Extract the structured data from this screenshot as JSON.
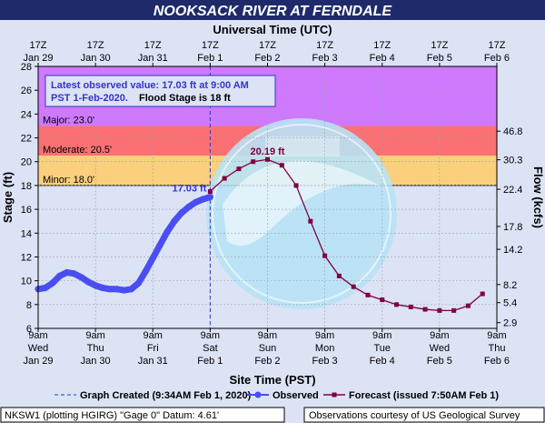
{
  "title": "NOOKSACK RIVER AT FERNDALE",
  "top_axis_title": "Universal Time (UTC)",
  "bottom_axis_title": "Site Time (PST)",
  "left_axis_title": "Stage (ft)",
  "right_axis_title": "Flow (kcfs)",
  "latest_box": {
    "line1": "Latest observed value: 17.03 ft at 9:00 AM",
    "line2a": "PST 1-Feb-2020.",
    "line2b": "Flood Stage is 18 ft"
  },
  "legend": {
    "graph_created": "Graph Created (9:34AM Feb 1, 2020)",
    "observed": "Observed",
    "forecast": "Forecast (issued 7:50AM Feb 1)"
  },
  "footer": {
    "left": "NKSW1 (plotting HGIRG) \"Gage 0\" Datum: 4.61'",
    "right": "Observations courtesy of US Geological Survey"
  },
  "colors": {
    "title_bg": "#1f2a6b",
    "major": "#cc66ff",
    "moderate": "#ff5c5c",
    "minor": "#ffcc66",
    "observed": "#4a4ef0",
    "forecast": "#800040",
    "latest_text": "#3333cc",
    "peak_text": "#800040",
    "frame_bg": "#dce3f5"
  },
  "chart_data": {
    "type": "line",
    "ylim": [
      6,
      28
    ],
    "y_ticks": [
      6,
      8,
      10,
      12,
      14,
      16,
      18,
      20,
      22,
      24,
      26,
      28
    ],
    "x_domain_hours": [
      0,
      192
    ],
    "bottom_ticks": [
      {
        "hour": 0,
        "line1": "9am",
        "line2": "Wed",
        "line3": "Jan 29"
      },
      {
        "hour": 24,
        "line1": "9am",
        "line2": "Thu",
        "line3": "Jan 30"
      },
      {
        "hour": 48,
        "line1": "9am",
        "line2": "Fri",
        "line3": "Jan 31"
      },
      {
        "hour": 72,
        "line1": "9am",
        "line2": "Sat",
        "line3": "Feb 1"
      },
      {
        "hour": 96,
        "line1": "9am",
        "line2": "Sun",
        "line3": "Feb 2"
      },
      {
        "hour": 120,
        "line1": "9am",
        "line2": "Mon",
        "line3": "Feb 3"
      },
      {
        "hour": 144,
        "line1": "9am",
        "line2": "Tue",
        "line3": "Feb 4"
      },
      {
        "hour": 168,
        "line1": "9am",
        "line2": "Wed",
        "line3": "Feb 5"
      },
      {
        "hour": 192,
        "line1": "9am",
        "line2": "Thu",
        "line3": "Feb 6"
      }
    ],
    "top_ticks": [
      {
        "hour": 0,
        "line1": "17Z",
        "line2": "Jan 29"
      },
      {
        "hour": 24,
        "line1": "17Z",
        "line2": "Jan 30"
      },
      {
        "hour": 48,
        "line1": "17Z",
        "line2": "Jan 31"
      },
      {
        "hour": 72,
        "line1": "17Z",
        "line2": "Feb 1"
      },
      {
        "hour": 96,
        "line1": "17Z",
        "line2": "Feb 2"
      },
      {
        "hour": 120,
        "line1": "17Z",
        "line2": "Feb 3"
      },
      {
        "hour": 144,
        "line1": "17Z",
        "line2": "Feb 4"
      },
      {
        "hour": 168,
        "line1": "17Z",
        "line2": "Feb 5"
      },
      {
        "hour": 192,
        "line1": "17Z",
        "line2": "Feb 6"
      }
    ],
    "flow_ticks": [
      {
        "stage": 6.48,
        "label": "2.9"
      },
      {
        "stage": 8.16,
        "label": "5.4"
      },
      {
        "stage": 9.68,
        "label": "8.2"
      },
      {
        "stage": 12.64,
        "label": "14.2"
      },
      {
        "stage": 14.56,
        "label": "17.8"
      },
      {
        "stage": 17.68,
        "label": "22.4"
      },
      {
        "stage": 20.16,
        "label": "30.3"
      },
      {
        "stage": 22.56,
        "label": "46.8"
      }
    ],
    "flood_categories": [
      {
        "name": "Major",
        "label": "Major: 23.0'",
        "from": 23.0,
        "to": 28
      },
      {
        "name": "Moderate",
        "label": "Moderate: 20.5'",
        "from": 20.5,
        "to": 23.0
      },
      {
        "name": "Minor",
        "label": "Minor: 18.0'",
        "from": 18.0,
        "to": 20.5
      }
    ],
    "latest_hour": 72,
    "latest_value_label": "17.03 ft",
    "peak_label": "20.19 ft",
    "peak_point": {
      "hour": 96,
      "y": 20.19
    },
    "series": [
      {
        "name": "Observed",
        "x": [
          0,
          3,
          6,
          9,
          12,
          15,
          18,
          21,
          24,
          27,
          30,
          33,
          36,
          39,
          42,
          45,
          48,
          51,
          54,
          57,
          60,
          63,
          66,
          69,
          72
        ],
        "y": [
          9.3,
          9.4,
          9.8,
          10.4,
          10.7,
          10.6,
          10.3,
          9.9,
          9.6,
          9.4,
          9.3,
          9.3,
          9.2,
          9.3,
          9.8,
          10.8,
          11.9,
          13.0,
          14.1,
          15.0,
          15.7,
          16.2,
          16.6,
          16.85,
          17.03
        ]
      },
      {
        "name": "Forecast",
        "x": [
          72,
          78,
          84,
          90,
          96,
          102,
          108,
          114,
          120,
          126,
          132,
          138,
          144,
          150,
          156,
          162,
          168,
          174,
          180,
          186
        ],
        "y": [
          17.5,
          18.6,
          19.4,
          20.0,
          20.19,
          19.7,
          18.0,
          15.0,
          12.1,
          10.4,
          9.5,
          8.8,
          8.4,
          8.0,
          7.8,
          7.6,
          7.5,
          7.5,
          7.9,
          8.9
        ]
      }
    ]
  }
}
